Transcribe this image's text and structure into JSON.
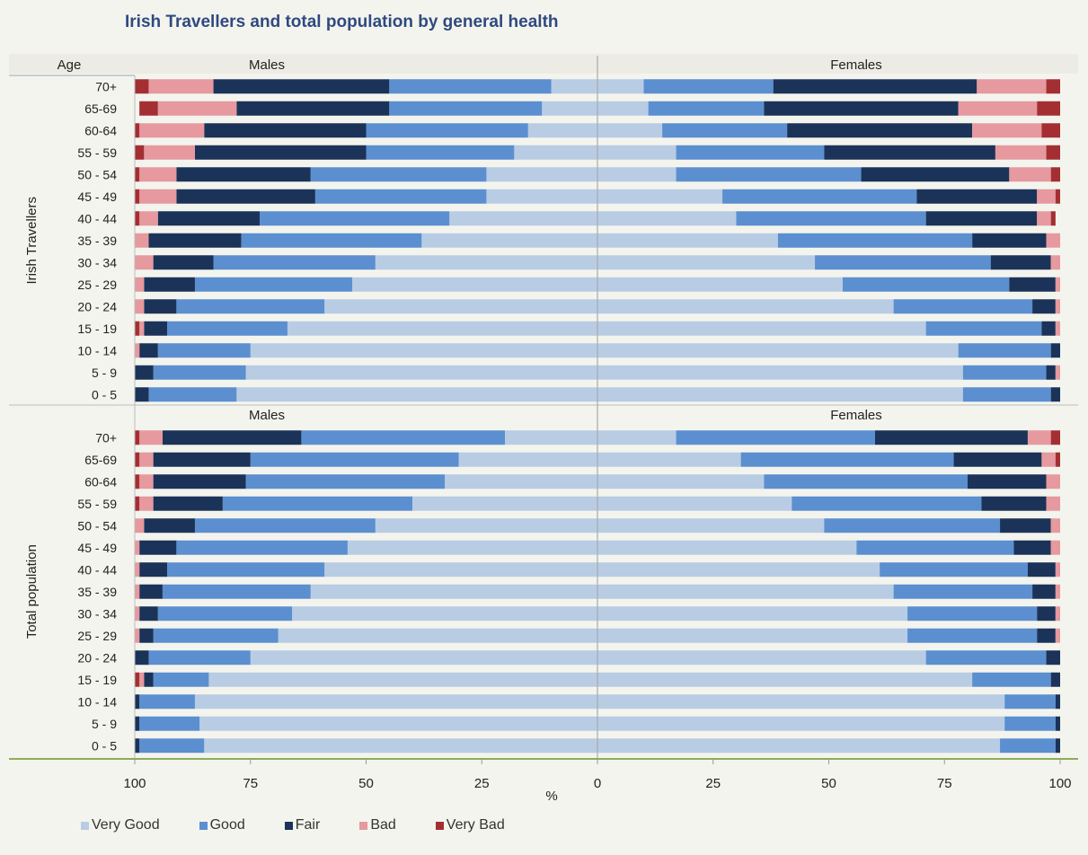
{
  "chart_data": {
    "type": "bar",
    "title": "Irish Travellers and total population by general health",
    "xlabel": "%",
    "xlim": [
      0,
      100
    ],
    "age_header": "Age",
    "x_ticks": [
      "100",
      "75",
      "50",
      "25",
      "0",
      "25",
      "50",
      "75",
      "100"
    ],
    "categories": [
      "70+",
      "65-69",
      "60-64",
      "55 - 59",
      "50 - 54",
      "45 - 49",
      "40 - 44",
      "35 - 39",
      "30 - 34",
      "25 - 29",
      "20 - 24",
      "15 - 19",
      "10 - 14",
      "5 - 9",
      "0 - 5"
    ],
    "series_names": [
      "Very Good",
      "Good",
      "Fair",
      "Bad",
      "Very Bad"
    ],
    "colors": [
      "#b8cce4",
      "#5b8fd0",
      "#1b3358",
      "#e6999e",
      "#a32f33"
    ],
    "panels": [
      {
        "group": "Irish Travellers",
        "males_label": "Males",
        "females_label": "Females",
        "males": [
          [
            10,
            35,
            38,
            14,
            3
          ],
          [
            12,
            33,
            33,
            17,
            4
          ],
          [
            15,
            35,
            35,
            14,
            1
          ],
          [
            18,
            32,
            37,
            11,
            2
          ],
          [
            24,
            38,
            29,
            8,
            1
          ],
          [
            24,
            37,
            30,
            8,
            1
          ],
          [
            32,
            41,
            22,
            4,
            1
          ],
          [
            38,
            39,
            20,
            3,
            0
          ],
          [
            48,
            35,
            13,
            4,
            0
          ],
          [
            53,
            34,
            11,
            2,
            0
          ],
          [
            59,
            32,
            7,
            2,
            0
          ],
          [
            67,
            26,
            5,
            1,
            1
          ],
          [
            75,
            20,
            4,
            1,
            0
          ],
          [
            76,
            20,
            4,
            0,
            0
          ],
          [
            78,
            19,
            3,
            0,
            0
          ]
        ],
        "females": [
          [
            10,
            28,
            44,
            15,
            3
          ],
          [
            11,
            25,
            42,
            17,
            5
          ],
          [
            14,
            27,
            40,
            15,
            4
          ],
          [
            17,
            32,
            37,
            11,
            3
          ],
          [
            17,
            40,
            32,
            9,
            2
          ],
          [
            27,
            42,
            26,
            4,
            1
          ],
          [
            30,
            41,
            24,
            3,
            1
          ],
          [
            39,
            42,
            16,
            3,
            0
          ],
          [
            47,
            38,
            13,
            2,
            0
          ],
          [
            53,
            36,
            10,
            1,
            0
          ],
          [
            64,
            30,
            5,
            1,
            0
          ],
          [
            71,
            25,
            3,
            1,
            0
          ],
          [
            78,
            20,
            2,
            0,
            0
          ],
          [
            79,
            18,
            2,
            1,
            0
          ],
          [
            79,
            19,
            2,
            0,
            0
          ]
        ]
      },
      {
        "group": "Total population",
        "males_label": "Males",
        "females_label": "Females",
        "males": [
          [
            20,
            44,
            30,
            5,
            1
          ],
          [
            30,
            45,
            21,
            3,
            1
          ],
          [
            33,
            43,
            20,
            3,
            1
          ],
          [
            40,
            41,
            15,
            3,
            1
          ],
          [
            48,
            39,
            11,
            2,
            0
          ],
          [
            54,
            37,
            8,
            1,
            0
          ],
          [
            59,
            34,
            6,
            1,
            0
          ],
          [
            62,
            32,
            5,
            1,
            0
          ],
          [
            66,
            29,
            4,
            1,
            0
          ],
          [
            69,
            27,
            3,
            1,
            0
          ],
          [
            75,
            22,
            3,
            0,
            0
          ],
          [
            84,
            12,
            2,
            1,
            1
          ],
          [
            87,
            12,
            1,
            0,
            0
          ],
          [
            86,
            13,
            1,
            0,
            0
          ],
          [
            85,
            14,
            1,
            0,
            0
          ]
        ],
        "females": [
          [
            17,
            43,
            33,
            5,
            2
          ],
          [
            31,
            46,
            19,
            3,
            1
          ],
          [
            36,
            44,
            17,
            3,
            0
          ],
          [
            42,
            41,
            14,
            3,
            0
          ],
          [
            49,
            38,
            11,
            2,
            0
          ],
          [
            56,
            34,
            8,
            2,
            0
          ],
          [
            61,
            32,
            6,
            1,
            0
          ],
          [
            64,
            30,
            5,
            1,
            0
          ],
          [
            67,
            28,
            4,
            1,
            0
          ],
          [
            67,
            28,
            4,
            1,
            0
          ],
          [
            71,
            26,
            3,
            0,
            0
          ],
          [
            81,
            17,
            2,
            0,
            0
          ],
          [
            88,
            11,
            1,
            0,
            0
          ],
          [
            88,
            11,
            1,
            0,
            0
          ],
          [
            87,
            12,
            1,
            0,
            0
          ]
        ]
      }
    ]
  }
}
